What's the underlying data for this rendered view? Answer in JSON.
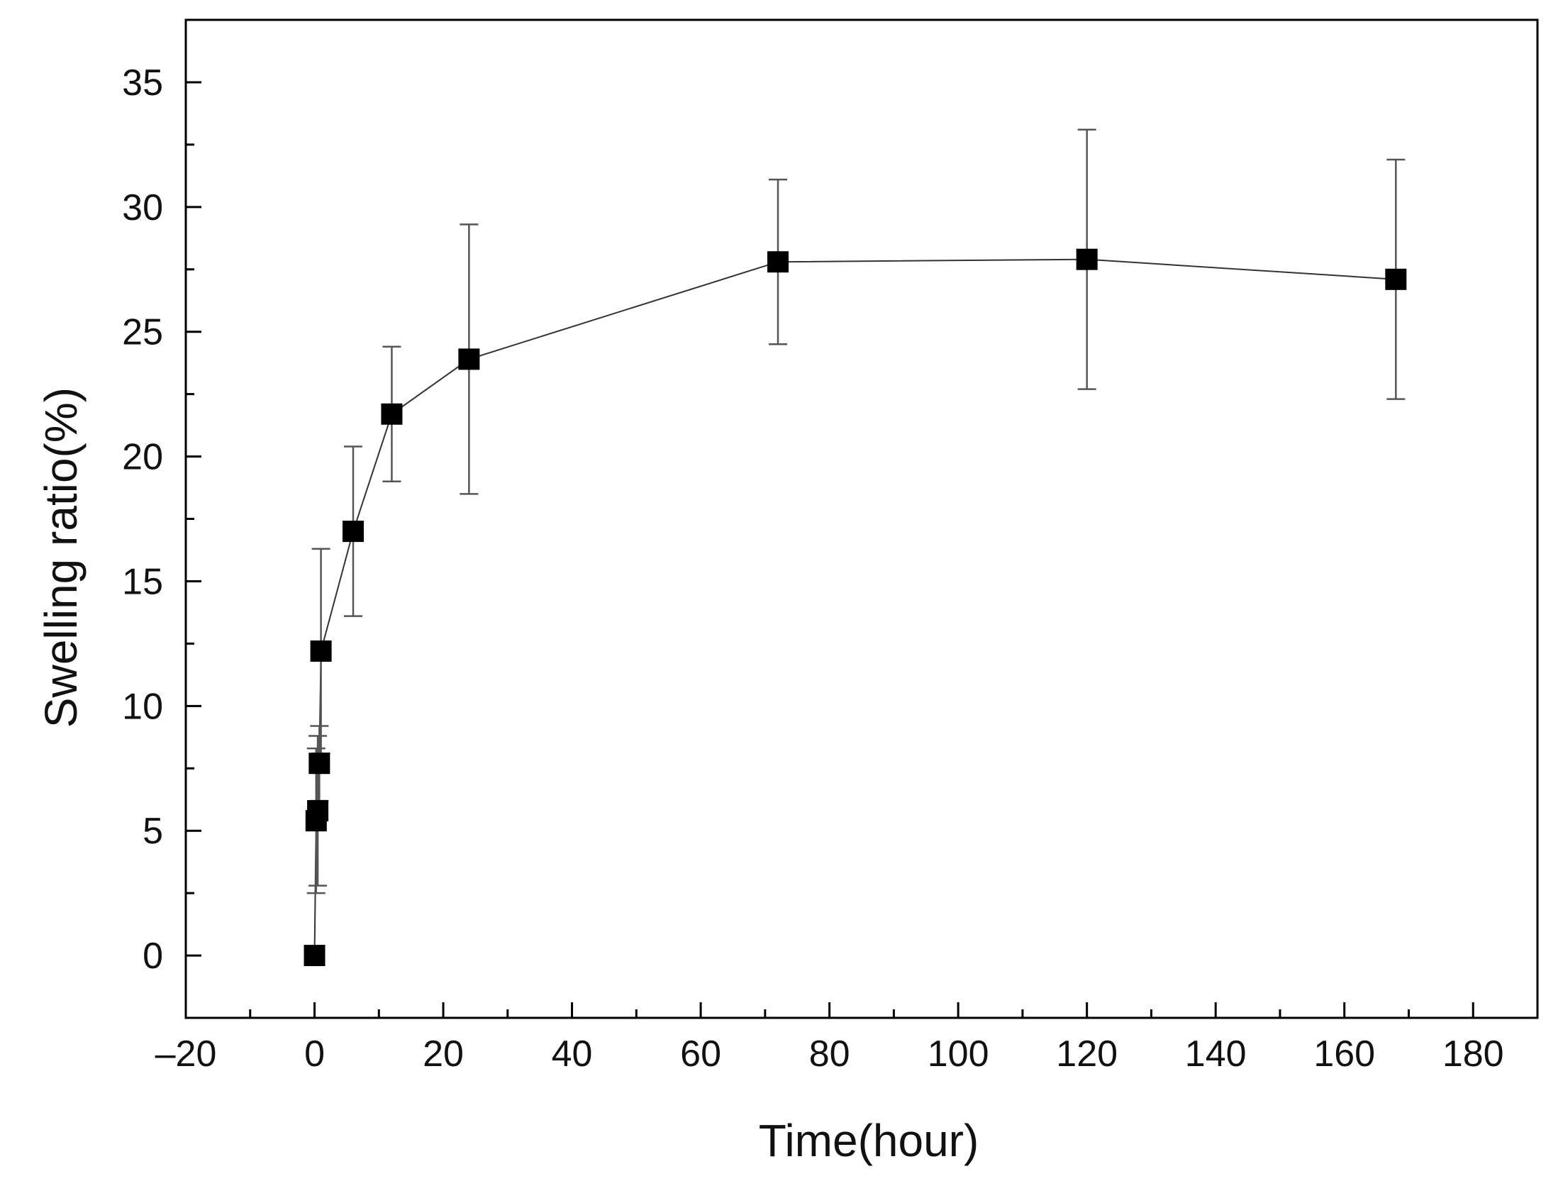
{
  "chart_data": {
    "type": "scatter",
    "title": "",
    "xlabel": "Time(hour)",
    "ylabel": "Swelling ratio(%)",
    "xlim": [
      -20,
      190
    ],
    "ylim": [
      -2.5,
      37.5
    ],
    "x_ticks": [
      -20,
      0,
      20,
      40,
      60,
      80,
      100,
      120,
      140,
      160,
      180
    ],
    "x_tick_labels": [
      "–20",
      "0",
      "20",
      "40",
      "60",
      "80",
      "100",
      "120",
      "140",
      "160",
      "180"
    ],
    "y_ticks": [
      0,
      5,
      10,
      15,
      20,
      25,
      30,
      35
    ],
    "y_tick_labels": [
      "0",
      "5",
      "10",
      "15",
      "20",
      "25",
      "30",
      "35"
    ],
    "grid": false,
    "colors": {
      "marker": "#000000",
      "line": "#333333",
      "error_bar": "#555555"
    },
    "series": [
      {
        "x": [
          0,
          0.25,
          0.5,
          0.75,
          1,
          6,
          12,
          24,
          72,
          120,
          168
        ],
        "y": [
          0,
          5.4,
          5.8,
          7.7,
          12.2,
          17.0,
          21.7,
          23.9,
          27.8,
          27.9,
          27.1
        ],
        "error": [
          0,
          2.9,
          3.0,
          1.5,
          4.1,
          3.4,
          2.7,
          5.4,
          3.3,
          5.2,
          4.8
        ]
      }
    ]
  }
}
